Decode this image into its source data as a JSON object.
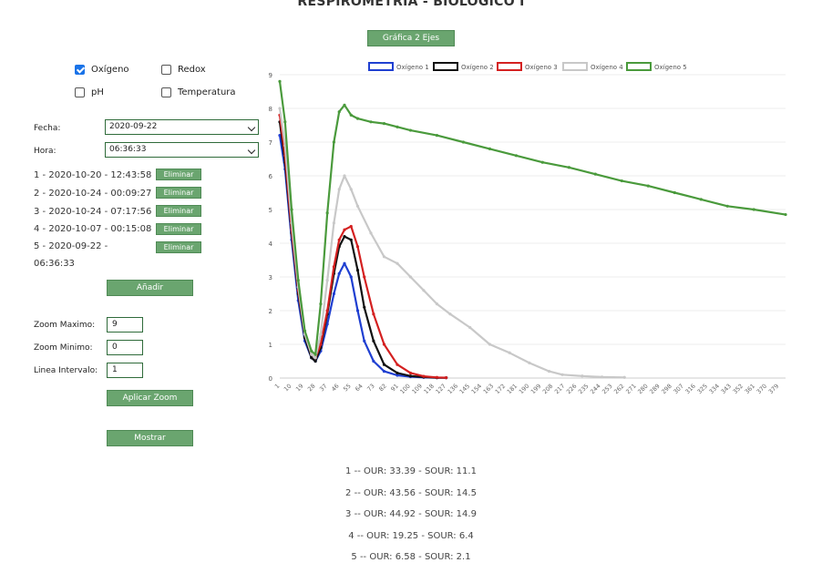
{
  "title": "RESPIROMETRIA - BIOLOGICO I",
  "toggle_button": "Gráfica 2 Ejes",
  "checkboxes": [
    {
      "label": "Oxígeno",
      "checked": true
    },
    {
      "label": "Redox",
      "checked": false
    },
    {
      "label": "pH",
      "checked": false
    },
    {
      "label": "Temperatura",
      "checked": false
    }
  ],
  "fecha": {
    "label": "Fecha:",
    "value": "2020-09-22"
  },
  "hora": {
    "label": "Hora:",
    "value": "06:36:33"
  },
  "records": [
    {
      "text": "1 - 2020-10-20 - 12:43:58",
      "button": "Eliminar"
    },
    {
      "text": "2 - 2020-10-24 - 00:09:27",
      "button": "Eliminar"
    },
    {
      "text": "3 - 2020-10-24 - 07:17:56",
      "button": "Eliminar"
    },
    {
      "text": "4 - 2020-10-07 - 00:15:08",
      "button": "Eliminar"
    },
    {
      "text": "5 - 2020-09-22 -",
      "text2": "06:36:33",
      "button": "Eliminar"
    }
  ],
  "add_button": "Añadir",
  "zoom": {
    "max_label": "Zoom Maximo:",
    "max_value": "9",
    "min_label": "Zoom Minimo:",
    "min_value": "0",
    "interval_label": "Linea Intervalo:",
    "interval_value": "1",
    "apply_button": "Aplicar Zoom"
  },
  "show_button": "Mostrar",
  "results": [
    "1 -- OUR: 33.39 - SOUR: 11.1",
    "2 -- OUR: 43.56 - SOUR: 14.5",
    "3 -- OUR: 44.92 - SOUR: 14.9",
    "4 -- OUR: 19.25 - SOUR: 6.4",
    "5 -- OUR: 6.58 - SOUR: 2.1"
  ],
  "chart_data": {
    "type": "line",
    "title": "",
    "xlabel": "",
    "ylabel": "",
    "ylim": [
      0,
      9
    ],
    "xlim": [
      1,
      384
    ],
    "grid": true,
    "legend_position": "top",
    "x_ticks": [
      1,
      10,
      19,
      28,
      37,
      46,
      55,
      64,
      73,
      82,
      91,
      100,
      109,
      118,
      127,
      136,
      145,
      154,
      163,
      172,
      181,
      190,
      199,
      208,
      217,
      226,
      235,
      244,
      253,
      262,
      271,
      280,
      289,
      298,
      307,
      316,
      325,
      334,
      343,
      352,
      361,
      370,
      379
    ],
    "y_ticks": [
      0,
      1,
      2,
      3,
      4,
      5,
      6,
      7,
      8,
      9
    ],
    "series": [
      {
        "name": "Oxígeno 1",
        "color": "#1f3fd1",
        "x": [
          1,
          5,
          10,
          15,
          20,
          25,
          28,
          32,
          37,
          42,
          46,
          50,
          55,
          60,
          65,
          72,
          80,
          90,
          100,
          110,
          120,
          127
        ],
        "y": [
          7.2,
          6.2,
          4.1,
          2.3,
          1.1,
          0.6,
          0.5,
          0.8,
          1.6,
          2.5,
          3.1,
          3.4,
          3.0,
          2.0,
          1.1,
          0.5,
          0.2,
          0.08,
          0.04,
          0.02,
          0.01,
          0.01
        ]
      },
      {
        "name": "Oxígeno 2",
        "color": "#111111",
        "x": [
          1,
          5,
          10,
          15,
          20,
          25,
          28,
          32,
          37,
          42,
          46,
          50,
          55,
          60,
          65,
          72,
          80,
          90,
          100,
          110,
          120,
          127
        ],
        "y": [
          7.6,
          6.4,
          4.3,
          2.5,
          1.2,
          0.6,
          0.5,
          0.9,
          1.9,
          3.1,
          3.9,
          4.2,
          4.1,
          3.2,
          2.1,
          1.1,
          0.4,
          0.15,
          0.06,
          0.03,
          0.01,
          0.01
        ]
      },
      {
        "name": "Oxígeno 3",
        "color": "#d42020",
        "x": [
          1,
          5,
          10,
          15,
          20,
          25,
          28,
          32,
          37,
          42,
          46,
          50,
          55,
          60,
          65,
          72,
          80,
          90,
          100,
          110,
          120,
          127
        ],
        "y": [
          7.8,
          6.6,
          4.4,
          2.6,
          1.3,
          0.7,
          0.6,
          1.0,
          2.0,
          3.3,
          4.1,
          4.4,
          4.5,
          3.9,
          3.0,
          1.9,
          1.0,
          0.4,
          0.15,
          0.05,
          0.02,
          0.01
        ]
      },
      {
        "name": "Oxígeno 4",
        "color": "#c8c8c8",
        "x": [
          1,
          5,
          10,
          15,
          20,
          25,
          28,
          32,
          37,
          42,
          46,
          50,
          55,
          60,
          70,
          80,
          90,
          100,
          110,
          120,
          130,
          145,
          160,
          175,
          190,
          205,
          215,
          230,
          245,
          262
        ],
        "y": [
          8.0,
          6.9,
          4.6,
          2.7,
          1.3,
          0.7,
          0.6,
          1.3,
          2.9,
          4.6,
          5.6,
          6.0,
          5.6,
          5.1,
          4.3,
          3.6,
          3.4,
          3.0,
          2.6,
          2.2,
          1.9,
          1.5,
          1.0,
          0.75,
          0.45,
          0.2,
          0.1,
          0.06,
          0.03,
          0.02
        ]
      },
      {
        "name": "Oxígeno 5",
        "color": "#4a9a3c",
        "x": [
          1,
          5,
          10,
          15,
          20,
          25,
          28,
          32,
          37,
          42,
          46,
          50,
          55,
          60,
          70,
          80,
          90,
          100,
          120,
          140,
          160,
          180,
          200,
          220,
          240,
          260,
          280,
          300,
          320,
          340,
          360,
          384
        ],
        "y": [
          8.8,
          7.6,
          5.0,
          2.9,
          1.4,
          0.8,
          0.7,
          2.2,
          4.9,
          7.0,
          7.9,
          8.1,
          7.8,
          7.7,
          7.6,
          7.55,
          7.45,
          7.35,
          7.2,
          7.0,
          6.8,
          6.6,
          6.4,
          6.25,
          6.05,
          5.85,
          5.7,
          5.5,
          5.3,
          5.1,
          5.0,
          4.85
        ]
      }
    ]
  }
}
